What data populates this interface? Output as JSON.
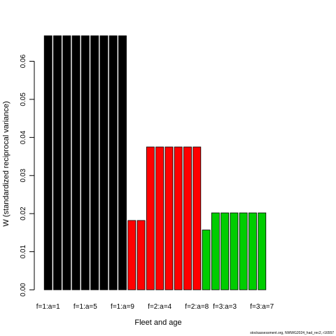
{
  "chart_data": {
    "type": "bar",
    "title": "",
    "xlabel": "Fleet and age",
    "ylabel": "W (standardized reciprocal variance)",
    "ylim": [
      0,
      0.068
    ],
    "yticks": [
      0.0,
      0.01,
      0.02,
      0.03,
      0.04,
      0.05,
      0.06
    ],
    "ytick_labels": [
      "0.00",
      "0.01",
      "0.02",
      "0.03",
      "0.04",
      "0.05",
      "0.06"
    ],
    "categories": [
      "f=1:a=1",
      "f=1:a=2",
      "f=1:a=3",
      "f=1:a=4",
      "f=1:a=5",
      "f=1:a=6",
      "f=1:a=7",
      "f=1:a=8",
      "f=1:a=9",
      "f=2:a=1",
      "f=2:a=2",
      "f=2:a=3",
      "f=2:a=4",
      "f=2:a=5",
      "f=2:a=6",
      "f=2:a=7",
      "f=2:a=8",
      "f=3:a=1",
      "f=3:a=2",
      "f=3:a=3",
      "f=3:a=4",
      "f=3:a=5",
      "f=3:a=6",
      "f=3:a=7"
    ],
    "shown_tick_labels": [
      "f=1:a=1",
      "f=1:a=5",
      "f=1:a=9",
      "f=2:a=4",
      "f=2:a=8",
      "f=3:a=3",
      "f=3:a=7"
    ],
    "values": [
      0.0667,
      0.0667,
      0.0667,
      0.0667,
      0.0667,
      0.0667,
      0.0667,
      0.0667,
      0.0667,
      0.0182,
      0.0182,
      0.0375,
      0.0375,
      0.0375,
      0.0375,
      0.0375,
      0.0375,
      0.0157,
      0.0202,
      0.0202,
      0.0202,
      0.0202,
      0.0202,
      0.0202
    ],
    "fleets": [
      1,
      1,
      1,
      1,
      1,
      1,
      1,
      1,
      1,
      2,
      2,
      2,
      2,
      2,
      2,
      2,
      2,
      3,
      3,
      3,
      3,
      3,
      3,
      3
    ],
    "fleet_colors": {
      "1": "#000000",
      "2": "#ff0000",
      "3": "#00cd00"
    },
    "grid": false,
    "legend": "none"
  },
  "footer": {
    "credit": "stockassessment.org, NWWG2024_had_rec2, r16557"
  }
}
